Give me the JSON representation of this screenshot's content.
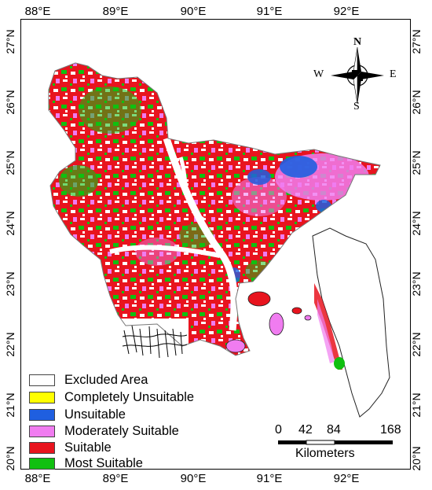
{
  "map": {
    "lon_ticks_top": [
      "88°E",
      "89°E",
      "90°E",
      "91°E",
      "92°E"
    ],
    "lon_ticks_bottom": [
      "88°E",
      "89°E",
      "90°E",
      "91°E",
      "92°E"
    ],
    "lat_ticks_left": [
      "27°N",
      "26°N",
      "25°N",
      "24°N",
      "23°N",
      "22°N",
      "21°N",
      "20°N"
    ],
    "lat_ticks_right": [
      "27°N",
      "26°N",
      "25°N",
      "24°N",
      "23°N",
      "22°N",
      "21°N",
      "20°N"
    ]
  },
  "compass": {
    "n": "N",
    "s": "S",
    "e": "E",
    "w": "W"
  },
  "legend": [
    {
      "label": "Excluded Area",
      "color": "#ffffff"
    },
    {
      "label": "Completely Unsuitable",
      "color": "#ffff00"
    },
    {
      "label": "Unsuitable",
      "color": "#1f5fe0"
    },
    {
      "label": "Moderately Suitable",
      "color": "#f07cf0"
    },
    {
      "label": "Suitable",
      "color": "#e8141e"
    },
    {
      "label": "Most Suitable",
      "color": "#10c010"
    }
  ],
  "scale_bar": {
    "labels": [
      "0",
      "42",
      "84",
      "168"
    ],
    "unit": "Kilometers"
  }
}
